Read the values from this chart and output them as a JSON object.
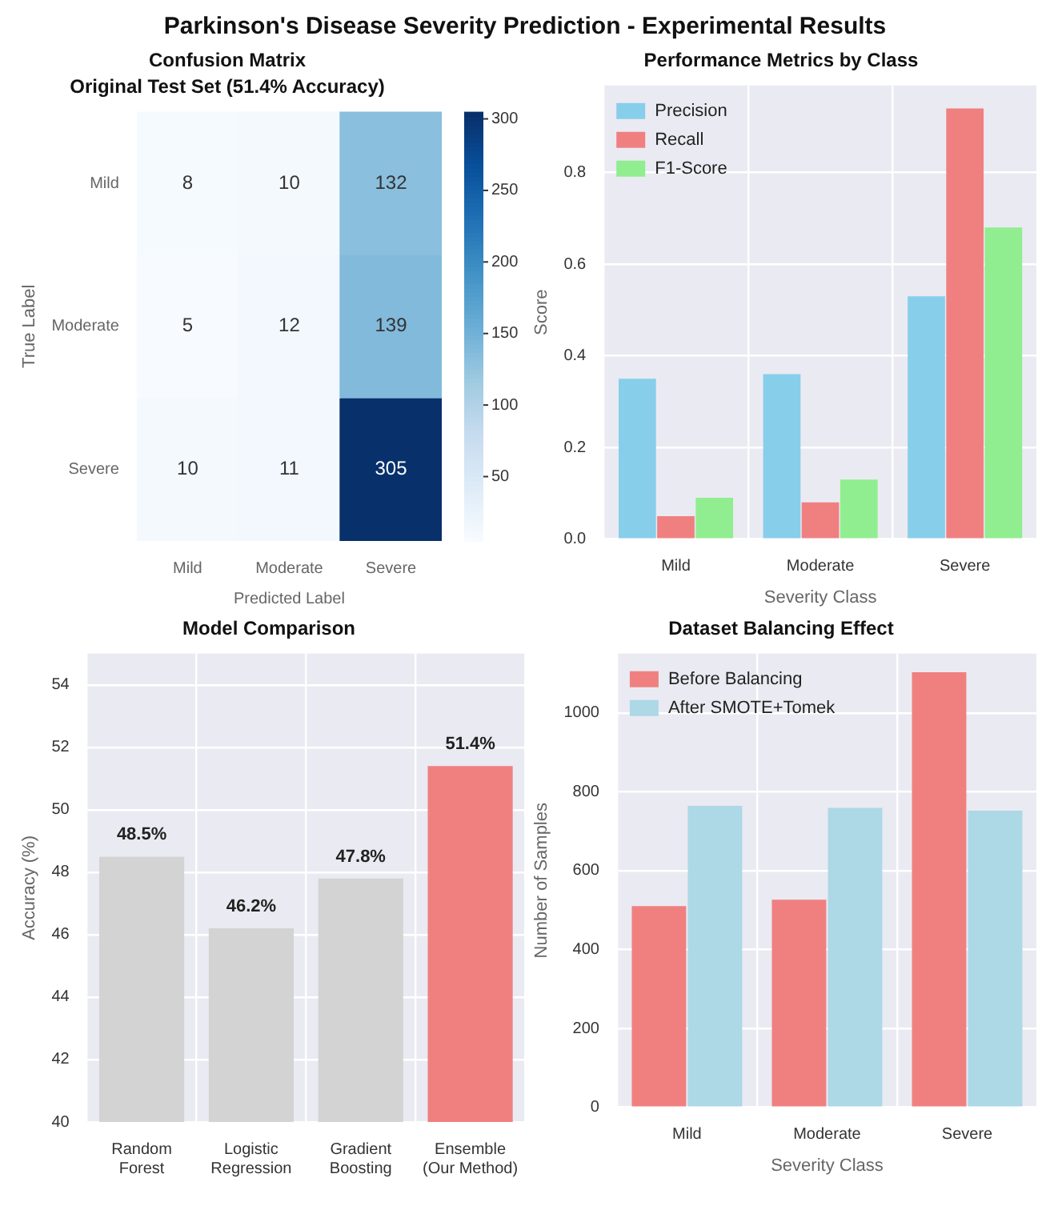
{
  "chart_data": [
    {
      "type": "heatmap",
      "title": "Confusion Matrix",
      "subtitle": "Original Test Set (51.4% Accuracy)",
      "annotations": [
        "Parkinson's Disease Severity Prediction - Experimental Results"
      ],
      "xlabel": "Predicted Label",
      "ylabel": "True Label",
      "categories": [
        "Mild",
        "Moderate",
        "Severe"
      ],
      "y_categories": [
        "Mild",
        "Moderate",
        "Severe"
      ],
      "cells": [
        [
          8,
          10,
          132
        ],
        [
          5,
          12,
          139
        ],
        [
          10,
          11,
          305
        ]
      ],
      "data_labels": true,
      "clim": [
        5,
        305
      ],
      "cticks": [
        50,
        100,
        150,
        200,
        250,
        300
      ]
    },
    {
      "type": "bar",
      "title": "Performance Metrics by Class",
      "xlabel": "Severity Class",
      "ylabel": "Score",
      "categories": [
        "Mild",
        "Moderate",
        "Severe"
      ],
      "series": [
        {
          "name": "Precision",
          "color": "#87ceeb",
          "values": [
            0.35,
            0.36,
            0.53
          ]
        },
        {
          "name": "Recall",
          "color": "#f08080",
          "values": [
            0.05,
            0.08,
            0.94
          ]
        },
        {
          "name": "F1-Score",
          "color": "#90ee90",
          "values": [
            0.09,
            0.13,
            0.68
          ]
        }
      ],
      "ylim": [
        0,
        0.99
      ],
      "yticks": [
        {
          "value": 0,
          "label": "0.0"
        },
        {
          "value": 0.2,
          "label": "0.2"
        },
        {
          "value": 0.4,
          "label": "0.4"
        },
        {
          "value": 0.6,
          "label": "0.6"
        },
        {
          "value": 0.8,
          "label": "0.8"
        }
      ],
      "grid": true,
      "legend": "top left"
    },
    {
      "type": "bar",
      "title": "Model Comparison",
      "ylabel": "Accuracy (%)",
      "categories": [
        "Random\nForest",
        "Logistic\nRegression",
        "Gradient\nBoosting",
        "Ensemble\n(Our Method)"
      ],
      "values": [
        48.5,
        46.2,
        47.8,
        51.4
      ],
      "colors": [
        "#d3d3d3",
        "#d3d3d3",
        "#d3d3d3",
        "#f08080"
      ],
      "value_labels": [
        "48.5%",
        "46.2%",
        "47.8%",
        "51.4%"
      ],
      "ylim": [
        40,
        55
      ],
      "yticks": [
        40,
        42,
        44,
        46,
        48,
        50,
        52,
        54
      ],
      "grid": true
    },
    {
      "type": "bar",
      "title": "Dataset Balancing Effect",
      "xlabel": "Severity Class",
      "ylabel": "Number of Samples",
      "categories": [
        "Mild",
        "Moderate",
        "Severe"
      ],
      "series": [
        {
          "name": "Before Balancing",
          "color": "#f08080",
          "values": [
            510,
            526,
            1103
          ]
        },
        {
          "name": "After SMOTE+Tomek",
          "color": "#add8e6",
          "values": [
            764,
            759,
            752
          ]
        }
      ],
      "ylim": [
        0,
        1150
      ],
      "yticks": [
        0,
        200,
        400,
        600,
        800,
        1000
      ],
      "grid": true,
      "legend": "top left"
    }
  ]
}
